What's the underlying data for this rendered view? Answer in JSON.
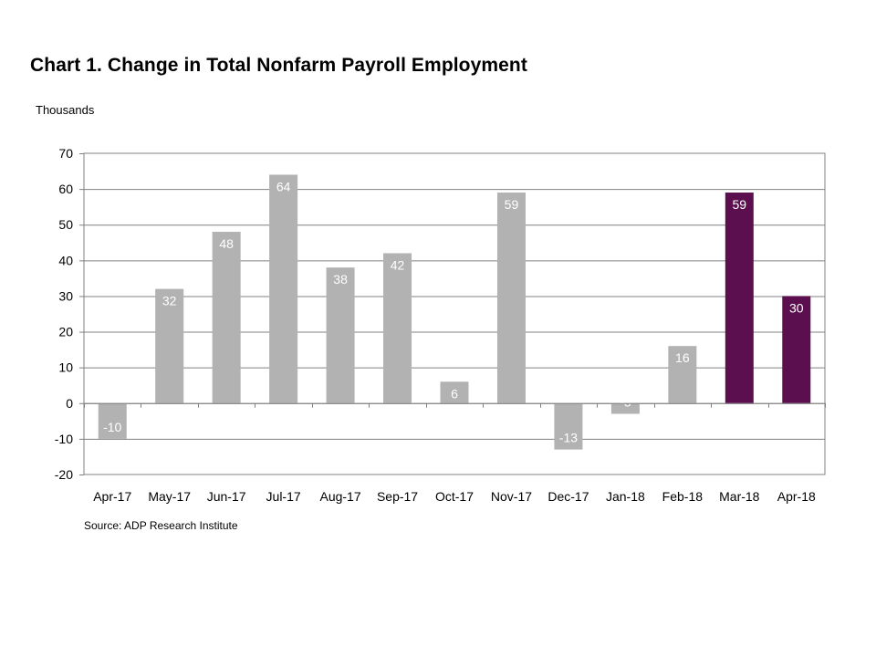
{
  "chart_data": {
    "type": "bar",
    "title": "Chart 1. Change in Total Nonfarm Payroll Employment",
    "ylabel": "Thousands",
    "xlabel": "",
    "source": "Source: ADP Research Institute",
    "ylim": [
      -20,
      70
    ],
    "yticks": [
      70,
      60,
      50,
      40,
      30,
      20,
      10,
      0,
      -10,
      -20
    ],
    "grid": true,
    "categories": [
      "Apr-17",
      "May-17",
      "Jun-17",
      "Jul-17",
      "Aug-17",
      "Sep-17",
      "Oct-17",
      "Nov-17",
      "Dec-17",
      "Jan-18",
      "Feb-18",
      "Mar-18",
      "Apr-18"
    ],
    "values": [
      -10,
      32,
      48,
      64,
      38,
      42,
      6,
      59,
      -13,
      -3,
      16,
      59,
      30
    ],
    "bar_colors": [
      "#b2b2b2",
      "#b2b2b2",
      "#b2b2b2",
      "#b2b2b2",
      "#b2b2b2",
      "#b2b2b2",
      "#b2b2b2",
      "#b2b2b2",
      "#b2b2b2",
      "#b2b2b2",
      "#b2b2b2",
      "#5c0f4f",
      "#5c0f4f"
    ],
    "axis_color": "#808080",
    "grid_color": "#808080"
  }
}
